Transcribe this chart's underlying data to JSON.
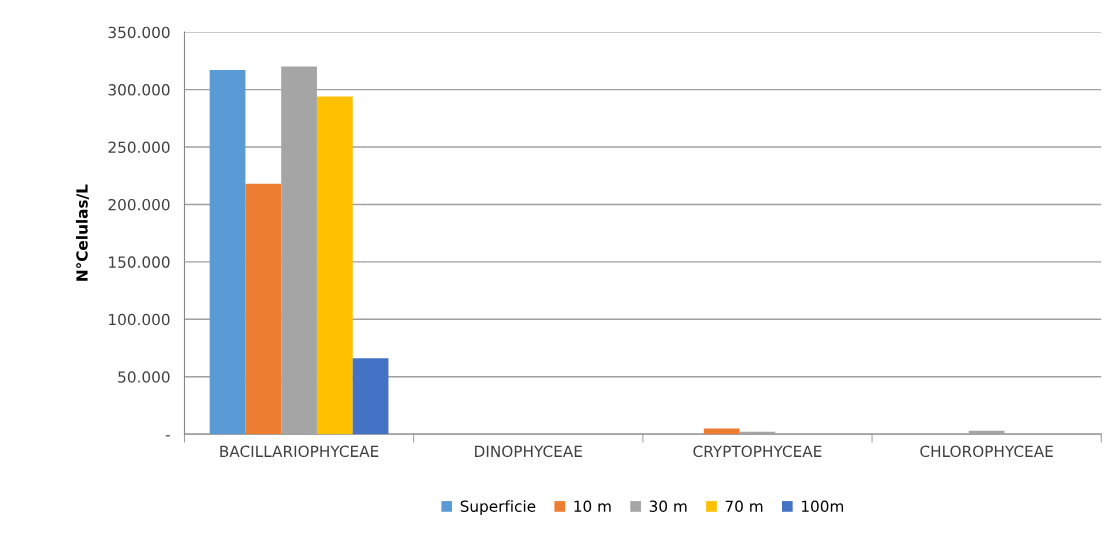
{
  "chart_data": {
    "type": "bar",
    "ylabel": "N°Celulas/L",
    "categories": [
      "BACILLARIOPHYCEAE",
      "DINOPHYCEAE",
      "CRYPTOPHYCEAE",
      "CHLOROPHYCEAE"
    ],
    "series": [
      {
        "name": "Superficie",
        "color": "#5b9bd5",
        "values": [
          317000,
          0,
          0,
          0
        ]
      },
      {
        "name": "10 m",
        "color": "#ed7d31",
        "values": [
          218000,
          0,
          5000,
          0
        ]
      },
      {
        "name": "30 m",
        "color": "#a5a5a5",
        "values": [
          320000,
          0,
          2000,
          3000
        ]
      },
      {
        "name": "70 m",
        "color": "#ffc000",
        "values": [
          294000,
          0,
          0,
          0
        ]
      },
      {
        "name": "100m",
        "color": "#4472c4",
        "values": [
          66000,
          0,
          0,
          0
        ]
      }
    ],
    "ylim": [
      0,
      350000
    ],
    "yticks": [
      {
        "value": 0,
        "label": "-"
      },
      {
        "value": 50000,
        "label": "50.000"
      },
      {
        "value": 100000,
        "label": "100.000"
      },
      {
        "value": 150000,
        "label": "150.000"
      },
      {
        "value": 200000,
        "label": "200.000"
      },
      {
        "value": 250000,
        "label": "250.000"
      },
      {
        "value": 300000,
        "label": "300.000"
      },
      {
        "value": 350000,
        "label": "350.000"
      }
    ],
    "grid": "y",
    "legend": "bottom"
  }
}
